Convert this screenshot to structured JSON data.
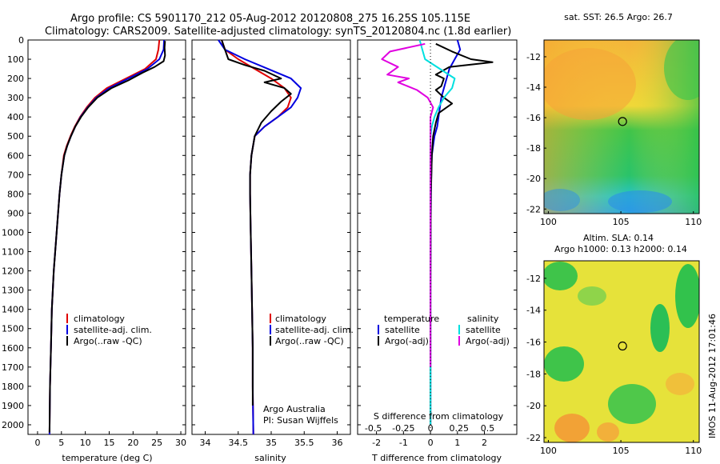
{
  "header": {
    "line1": "Argo profile: CS 5901170_212 05-Aug-2012 20120808_275 16.25S 105.115E",
    "line2": "Climatology: CARS2009. Satellite-adjusted climatology: synTS_20120804.nc (1.8d earlier)"
  },
  "colors": {
    "climatology": "#e00000",
    "satellite": "#0000e0",
    "argo": "#000000",
    "satellite_s": "#00e0e0",
    "argo_s": "#e000e0"
  },
  "chart_data": [
    {
      "type": "line",
      "id": "temperature",
      "xlabel": "temperature (deg C)",
      "ylabel": "",
      "xlim": [
        -2,
        31
      ],
      "ylim": [
        2050,
        0
      ],
      "xticks": [
        0,
        5,
        10,
        15,
        20,
        25,
        30
      ],
      "yticks": [
        0,
        100,
        200,
        300,
        400,
        500,
        600,
        700,
        800,
        900,
        1000,
        1100,
        1200,
        1300,
        1400,
        1500,
        1600,
        1700,
        1800,
        1900,
        2000
      ],
      "legend": [
        "climatology",
        "satellite-adj. clim.",
        "Argo(..raw -QC)"
      ],
      "legend_position": "center-right",
      "series": [
        {
          "name": "climatology",
          "x": [
            25.5,
            25.3,
            24.8,
            22.5,
            18.5,
            14.5,
            12.0,
            10.3,
            8.9,
            7.8,
            6.9,
            6.1,
            5.5,
            5.0,
            4.6,
            4.3,
            4.0,
            3.7,
            3.4,
            3.2,
            3.0,
            2.8,
            2.6,
            2.5
          ],
          "y": [
            0,
            50,
            100,
            150,
            200,
            250,
            300,
            350,
            400,
            450,
            500,
            550,
            600,
            700,
            800,
            900,
            1000,
            1100,
            1200,
            1300,
            1400,
            1600,
            1800,
            2050
          ]
        },
        {
          "name": "satellite-adj. clim.",
          "x": [
            26.5,
            26.4,
            25.5,
            23.0,
            19.0,
            15.0,
            12.3,
            10.5,
            9.0,
            7.9,
            7.0,
            6.2,
            5.6,
            5.0,
            4.6,
            4.3,
            4.0,
            3.7,
            3.4,
            3.2,
            3.0,
            2.8,
            2.6,
            2.5
          ],
          "y": [
            0,
            50,
            100,
            150,
            200,
            250,
            300,
            350,
            400,
            450,
            500,
            550,
            600,
            700,
            800,
            900,
            1000,
            1100,
            1200,
            1300,
            1400,
            1600,
            1800,
            2050
          ]
        },
        {
          "name": "Argo(..raw -QC)",
          "x": [
            26.7,
            26.6,
            26.7,
            26.4,
            24.5,
            22.0,
            19.0,
            15.5,
            12.5,
            10.6,
            9.1,
            7.9,
            7.0,
            6.2,
            5.6,
            5.0,
            4.6,
            4.3,
            4.0,
            3.7,
            3.4,
            3.2,
            3.0,
            2.8,
            2.6,
            2.5
          ],
          "y": [
            5,
            40,
            80,
            110,
            140,
            170,
            210,
            250,
            300,
            350,
            400,
            450,
            500,
            550,
            600,
            700,
            800,
            900,
            1000,
            1100,
            1200,
            1300,
            1400,
            1600,
            1800,
            2040
          ]
        }
      ]
    },
    {
      "type": "line",
      "id": "salinity",
      "xlabel": "salinity",
      "xlim": [
        33.8,
        36.2
      ],
      "ylim": [
        2050,
        0
      ],
      "xticks": [
        34,
        34.5,
        35,
        35.5,
        36
      ],
      "legend": [
        "climatology",
        "satellite-adj. clim.",
        "Argo(..raw -QC)"
      ],
      "legend_position": "center-right",
      "annotation": [
        "Argo Australia",
        "PI: Susan Wijffels"
      ],
      "series": [
        {
          "name": "climatology",
          "x": [
            34.25,
            34.3,
            34.5,
            34.75,
            35.0,
            35.2,
            35.3,
            35.25,
            35.1,
            34.9,
            34.75,
            34.7,
            34.68,
            34.68,
            34.69,
            34.7,
            34.71,
            34.72,
            34.72,
            34.73
          ],
          "y": [
            0,
            50,
            100,
            150,
            200,
            250,
            300,
            350,
            400,
            450,
            500,
            600,
            700,
            800,
            1000,
            1200,
            1400,
            1600,
            1800,
            2050
          ]
        },
        {
          "name": "satellite-adj. clim.",
          "x": [
            34.2,
            34.3,
            34.6,
            34.95,
            35.3,
            35.45,
            35.4,
            35.3,
            35.1,
            34.9,
            34.75,
            34.7,
            34.68,
            34.68,
            34.69,
            34.7,
            34.71,
            34.72,
            34.72,
            34.73
          ],
          "y": [
            0,
            50,
            100,
            150,
            200,
            250,
            300,
            350,
            400,
            450,
            500,
            600,
            700,
            800,
            1000,
            1200,
            1400,
            1600,
            1800,
            2050
          ]
        },
        {
          "name": "Argo(..raw -QC)",
          "x": [
            34.25,
            34.3,
            34.35,
            34.6,
            34.9,
            35.15,
            34.9,
            35.2,
            35.3,
            35.15,
            35.0,
            34.85,
            34.75,
            34.7,
            34.68,
            34.68,
            34.69,
            34.7,
            34.71,
            34.72,
            34.72
          ],
          "y": [
            0,
            50,
            100,
            130,
            160,
            200,
            220,
            250,
            280,
            320,
            370,
            430,
            500,
            600,
            700,
            800,
            1000,
            1200,
            1400,
            1600,
            1900
          ]
        }
      ]
    },
    {
      "type": "line",
      "id": "difference",
      "xlabel": "T difference from climatology",
      "xlabel_top": "S difference from climatology",
      "xlim": [
        -2.7,
        3.2
      ],
      "ylim": [
        2050,
        0
      ],
      "xticks": [
        -2,
        -1,
        0,
        1,
        2
      ],
      "xticks_s": [
        "-0.5",
        "-0.25",
        "0",
        "0.25",
        "0.5"
      ],
      "legend": [
        "temperature",
        "satellite",
        "Argo(-adj)",
        "salinity",
        "satellite",
        "Argo(-adj)"
      ],
      "legend_position": "center-right",
      "series": [
        {
          "name": "satellite",
          "x": [
            1.0,
            1.1,
            0.9,
            0.7,
            0.6,
            0.5,
            0.4,
            0.35,
            0.3,
            0.25,
            0.15,
            0.1,
            0.05,
            0.03,
            0.02,
            0.01,
            0.0,
            0.0,
            0.0,
            0.0,
            0.0
          ],
          "y": [
            0,
            50,
            100,
            150,
            200,
            250,
            300,
            350,
            400,
            450,
            500,
            550,
            600,
            700,
            800,
            1000,
            1200,
            1400,
            1600,
            1800,
            2000
          ]
        },
        {
          "name": "Argo(-adj)",
          "x": [
            0.2,
            0.8,
            1.5,
            2.3,
            0.7,
            0.2,
            0.5,
            0.4,
            0.2,
            0.5,
            0.8,
            0.3,
            0.2,
            0.1,
            0.05,
            0.02,
            0.01,
            0.0,
            0.0,
            0.0
          ],
          "y": [
            20,
            60,
            100,
            115,
            140,
            180,
            200,
            240,
            260,
            300,
            330,
            380,
            430,
            500,
            600,
            800,
            1000,
            1400,
            1700,
            2000
          ]
        },
        {
          "name": "satellite",
          "x": [
            -0.4,
            -0.3,
            -0.2,
            0.35,
            0.9,
            0.8,
            0.5,
            0.3,
            0.15,
            0.05,
            0.0,
            0.0,
            0.0,
            0.0,
            0.0,
            0.0
          ],
          "y": [
            0,
            50,
            100,
            150,
            200,
            250,
            300,
            350,
            400,
            450,
            500,
            600,
            800,
            1200,
            1600,
            2000
          ]
        },
        {
          "name": "Argo(-adj)",
          "x": [
            -0.2,
            -1.5,
            -1.8,
            -1.2,
            -1.6,
            -0.8,
            -1.2,
            -0.5,
            -0.1,
            0.1,
            0.0,
            0.0,
            0.0,
            0.0,
            0.0,
            0.0,
            0.0
          ],
          "y": [
            20,
            60,
            100,
            140,
            180,
            200,
            220,
            260,
            300,
            350,
            400,
            450,
            500,
            600,
            800,
            1200,
            1700
          ]
        }
      ]
    },
    {
      "type": "heatmap",
      "id": "sst-map",
      "title": "sat. SST: 26.5 Argo: 26.7",
      "xlim": [
        99.7,
        110.4
      ],
      "ylim": [
        -22.3,
        -10.9
      ],
      "xticks": [
        100,
        105,
        110
      ],
      "yticks": [
        -12,
        -14,
        -16,
        -18,
        -20,
        -22
      ],
      "marker": [
        105.115,
        -16.25
      ]
    },
    {
      "type": "heatmap",
      "id": "sla-map",
      "title": "Altim. SLA: 0.14",
      "subtitle": "Argo h1000: 0.13 h2000: 0.14",
      "xlim": [
        99.7,
        110.4
      ],
      "ylim": [
        -22.3,
        -10.9
      ],
      "xticks": [
        100,
        105,
        110
      ],
      "yticks": [
        -12,
        -14,
        -16,
        -18,
        -20,
        -22
      ],
      "marker": [
        105.115,
        -16.25
      ]
    }
  ],
  "footer_vertical": "IMOS 11-Aug-2012 17:01:46"
}
